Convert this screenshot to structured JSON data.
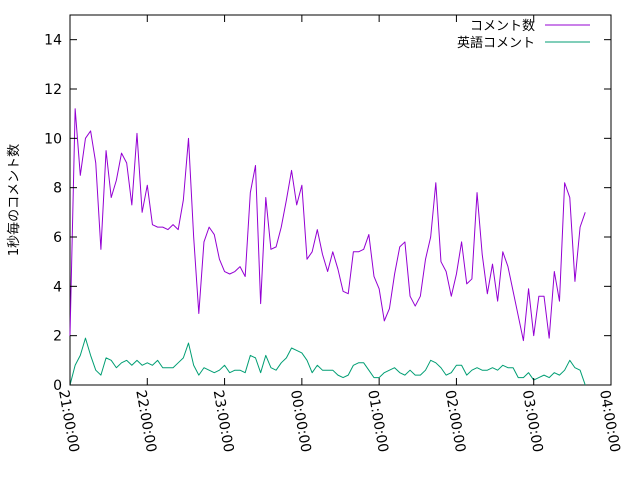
{
  "chart_data": {
    "type": "line",
    "title": "",
    "xlabel": "",
    "ylabel": "1秒毎のコメント数",
    "xlim": [
      "21:00:00",
      "04:00:00"
    ],
    "ylim": [
      0,
      15
    ],
    "grid": false,
    "legend_placement": "top-right",
    "x_tick_labels": [
      "21:00:00",
      "22:00:00",
      "23:00:00",
      "00:00:00",
      "01:00:00",
      "02:00:00",
      "03:00:00",
      "04:00:00"
    ],
    "y_tick_labels": [
      "0",
      "2",
      "4",
      "6",
      "8",
      "10",
      "12",
      "14"
    ],
    "x_step_minutes": 4,
    "series": [
      {
        "name": "コメント数",
        "color": "#9400d3",
        "values": [
          2.0,
          11.2,
          8.5,
          10.0,
          10.3,
          9.0,
          5.5,
          9.5,
          7.6,
          8.3,
          9.4,
          9.0,
          7.3,
          10.2,
          7.0,
          8.1,
          6.5,
          6.4,
          6.4,
          6.3,
          6.5,
          6.3,
          7.5,
          10.0,
          6.0,
          2.9,
          5.8,
          6.4,
          6.1,
          5.1,
          4.6,
          4.5,
          4.6,
          4.8,
          4.4,
          7.8,
          8.9,
          3.3,
          7.6,
          5.5,
          5.6,
          6.4,
          7.5,
          8.7,
          7.3,
          8.1,
          5.1,
          5.4,
          6.3,
          5.3,
          4.6,
          5.4,
          4.7,
          3.8,
          3.7,
          5.4,
          5.4,
          5.5,
          6.1,
          4.4,
          3.9,
          2.6,
          3.1,
          4.5,
          5.6,
          5.8,
          3.6,
          3.2,
          3.6,
          5.1,
          6.0,
          8.2,
          5.0,
          4.6,
          3.6,
          4.5,
          5.8,
          4.1,
          4.3,
          7.8,
          5.3,
          3.7,
          4.9,
          3.4,
          5.4,
          4.8,
          3.8,
          2.8,
          1.8,
          3.9,
          2.0,
          3.6,
          3.6,
          1.9,
          4.6,
          3.4,
          8.2,
          7.6,
          4.2,
          6.4,
          7.0
        ]
      },
      {
        "name": "英語コメント",
        "color": "#009e73",
        "values": [
          0.0,
          0.8,
          1.2,
          1.9,
          1.2,
          0.6,
          0.4,
          1.1,
          1.0,
          0.7,
          0.9,
          1.0,
          0.8,
          1.0,
          0.8,
          0.9,
          0.8,
          1.0,
          0.7,
          0.7,
          0.7,
          0.9,
          1.1,
          1.7,
          0.8,
          0.4,
          0.7,
          0.6,
          0.5,
          0.6,
          0.8,
          0.5,
          0.6,
          0.6,
          0.5,
          1.2,
          1.1,
          0.5,
          1.2,
          0.7,
          0.6,
          0.9,
          1.1,
          1.5,
          1.4,
          1.3,
          1.0,
          0.5,
          0.8,
          0.6,
          0.6,
          0.6,
          0.4,
          0.3,
          0.4,
          0.8,
          0.9,
          0.9,
          0.6,
          0.3,
          0.3,
          0.5,
          0.6,
          0.7,
          0.5,
          0.4,
          0.6,
          0.4,
          0.4,
          0.6,
          1.0,
          0.9,
          0.7,
          0.4,
          0.5,
          0.8,
          0.8,
          0.4,
          0.6,
          0.7,
          0.6,
          0.6,
          0.7,
          0.6,
          0.8,
          0.7,
          0.7,
          0.3,
          0.3,
          0.5,
          0.2,
          0.3,
          0.4,
          0.3,
          0.5,
          0.4,
          0.6,
          1.0,
          0.7,
          0.6,
          0.0
        ]
      }
    ]
  }
}
